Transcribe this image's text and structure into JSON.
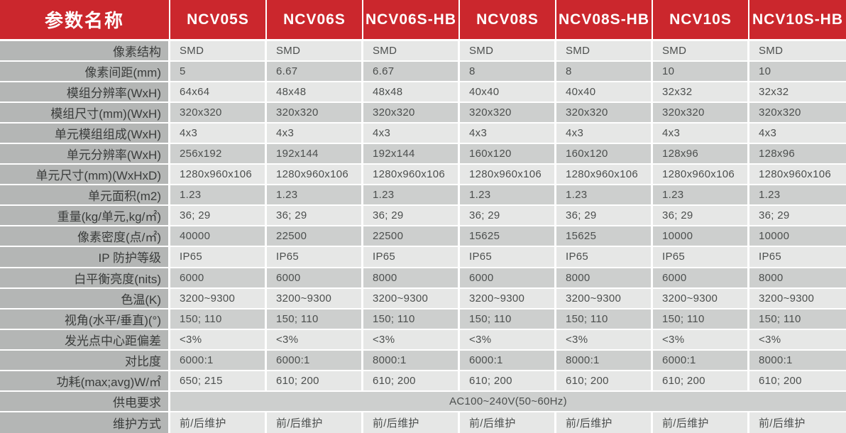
{
  "header": {
    "param_col_label": "参数名称",
    "models": [
      "NCV05S",
      "NCV06S",
      "NCV06S-HB",
      "NCV08S",
      "NCV08S-HB",
      "NCV10S",
      "NCV10S-HB"
    ]
  },
  "colors": {
    "header_bg": "#cb272d",
    "header_text": "#ffffff",
    "label_bg": "#b4b6b5",
    "label_text": "#3a3c3b",
    "row_light": "#e6e7e6",
    "row_dark": "#cdcfce",
    "value_text": "#4c4f4e",
    "separator": "#ffffff"
  },
  "rows": [
    {
      "label": "像素结构",
      "values": [
        "SMD",
        "SMD",
        "SMD",
        "SMD",
        "SMD",
        "SMD",
        "SMD"
      ]
    },
    {
      "label": "像素间距(mm)",
      "values": [
        "5",
        "6.67",
        "6.67",
        "8",
        "8",
        "10",
        "10"
      ]
    },
    {
      "label": "模组分辨率(WxH)",
      "values": [
        "64x64",
        "48x48",
        "48x48",
        "40x40",
        "40x40",
        "32x32",
        "32x32"
      ]
    },
    {
      "label": "模组尺寸(mm)(WxH)",
      "values": [
        "320x320",
        "320x320",
        "320x320",
        "320x320",
        "320x320",
        "320x320",
        "320x320"
      ]
    },
    {
      "label": "单元模组组成(WxH)",
      "values": [
        "4x3",
        "4x3",
        "4x3",
        "4x3",
        "4x3",
        "4x3",
        "4x3"
      ]
    },
    {
      "label": "单元分辨率(WxH)",
      "values": [
        "256x192",
        "192x144",
        "192x144",
        "160x120",
        "160x120",
        "128x96",
        "128x96"
      ]
    },
    {
      "label": "单元尺寸(mm)(WxHxD)",
      "values": [
        "1280x960x106",
        "1280x960x106",
        "1280x960x106",
        "1280x960x106",
        "1280x960x106",
        "1280x960x106",
        "1280x960x106"
      ]
    },
    {
      "label": "单元面积(m2)",
      "values": [
        "1.23",
        "1.23",
        "1.23",
        "1.23",
        "1.23",
        "1.23",
        "1.23"
      ]
    },
    {
      "label": "重量(kg/单元,kg/㎡)",
      "values": [
        "36; 29",
        "36; 29",
        "36; 29",
        "36; 29",
        "36; 29",
        "36; 29",
        "36; 29"
      ]
    },
    {
      "label": "像素密度(点/㎡)",
      "values": [
        "40000",
        "22500",
        "22500",
        "15625",
        "15625",
        "10000",
        "10000"
      ]
    },
    {
      "label": "IP 防护等级",
      "values": [
        "IP65",
        "IP65",
        "IP65",
        "IP65",
        "IP65",
        "IP65",
        "IP65"
      ]
    },
    {
      "label": "白平衡亮度(nits)",
      "values": [
        "6000",
        "6000",
        "8000",
        "6000",
        "8000",
        "6000",
        "8000"
      ]
    },
    {
      "label": "色温(K)",
      "values": [
        "3200~9300",
        "3200~9300",
        "3200~9300",
        "3200~9300",
        "3200~9300",
        "3200~9300",
        "3200~9300"
      ]
    },
    {
      "label": "视角(水平/垂直)(°)",
      "values": [
        "150; 110",
        "150; 110",
        "150; 110",
        "150; 110",
        "150; 110",
        "150; 110",
        "150; 110"
      ]
    },
    {
      "label": "发光点中心距偏差",
      "values": [
        "<3%",
        "<3%",
        "<3%",
        "<3%",
        "<3%",
        "<3%",
        "<3%"
      ]
    },
    {
      "label": "对比度",
      "values": [
        "6000:1",
        "6000:1",
        "8000:1",
        "6000:1",
        "8000:1",
        "6000:1",
        "8000:1"
      ]
    },
    {
      "label": "功耗(max;avg)W/㎡",
      "values": [
        "650; 215",
        "610; 200",
        "610; 200",
        "610; 200",
        "610; 200",
        "610; 200",
        "610; 200"
      ]
    },
    {
      "label": "供电要求",
      "span_value": "AC100~240V(50~60Hz)"
    },
    {
      "label": "维护方式",
      "values": [
        "前/后维护",
        "前/后维护",
        "前/后维护",
        "前/后维护",
        "前/后维护",
        "前/后维护",
        "前/后维护"
      ]
    }
  ]
}
